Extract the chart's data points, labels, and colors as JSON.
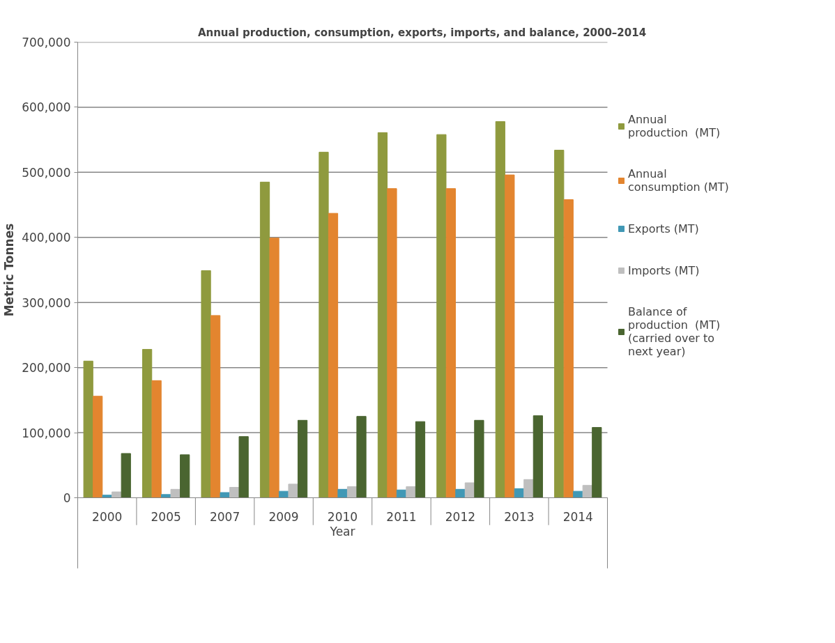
{
  "chart_data": {
    "type": "bar",
    "title": "Annual production, consumption, exports, imports, and balance, 2000–2014",
    "xlabel": "Year",
    "ylabel": "Metric Tonnes",
    "categories": [
      "2000",
      "2005",
      "2007",
      "2009",
      "2010",
      "2011",
      "2012",
      "2013",
      "2014"
    ],
    "series": [
      {
        "name": "Annual production  (MT)",
        "color": "#8f9a3e",
        "values": [
          210000,
          228000,
          349000,
          485000,
          531000,
          561000,
          558000,
          578000,
          534000
        ]
      },
      {
        "name": "Annual consumption (MT)",
        "color": "#e3852f",
        "values": [
          156000,
          180000,
          280000,
          399000,
          437000,
          475000,
          475000,
          496000,
          458000
        ]
      },
      {
        "name": "Exports (MT)",
        "color": "#4198b5",
        "values": [
          4000,
          5000,
          8000,
          10000,
          13000,
          12000,
          13000,
          14000,
          10000
        ]
      },
      {
        "name": "Imports (MT)",
        "color": "#bfbfbf",
        "values": [
          9000,
          13000,
          16000,
          21000,
          17000,
          17000,
          23000,
          28000,
          19000
        ]
      },
      {
        "name": "Balance of production  (MT) (carried over to next year)",
        "color": "#4a6530",
        "values": [
          68000,
          66000,
          94000,
          119000,
          125000,
          117000,
          119000,
          126000,
          108000
        ]
      }
    ],
    "ylim": [
      0,
      700000
    ],
    "yticks": [
      {
        "value": 0,
        "label": "0"
      },
      {
        "value": 100000,
        "label": "100,000"
      },
      {
        "value": 200000,
        "label": "200,000"
      },
      {
        "value": 300000,
        "label": "300,000"
      },
      {
        "value": 400000,
        "label": "400,000"
      },
      {
        "value": 500000,
        "label": "500,000"
      },
      {
        "value": 600000,
        "label": "600,000"
      },
      {
        "value": 700000,
        "label": "700,000"
      }
    ],
    "grid": "y",
    "legend": "right"
  }
}
